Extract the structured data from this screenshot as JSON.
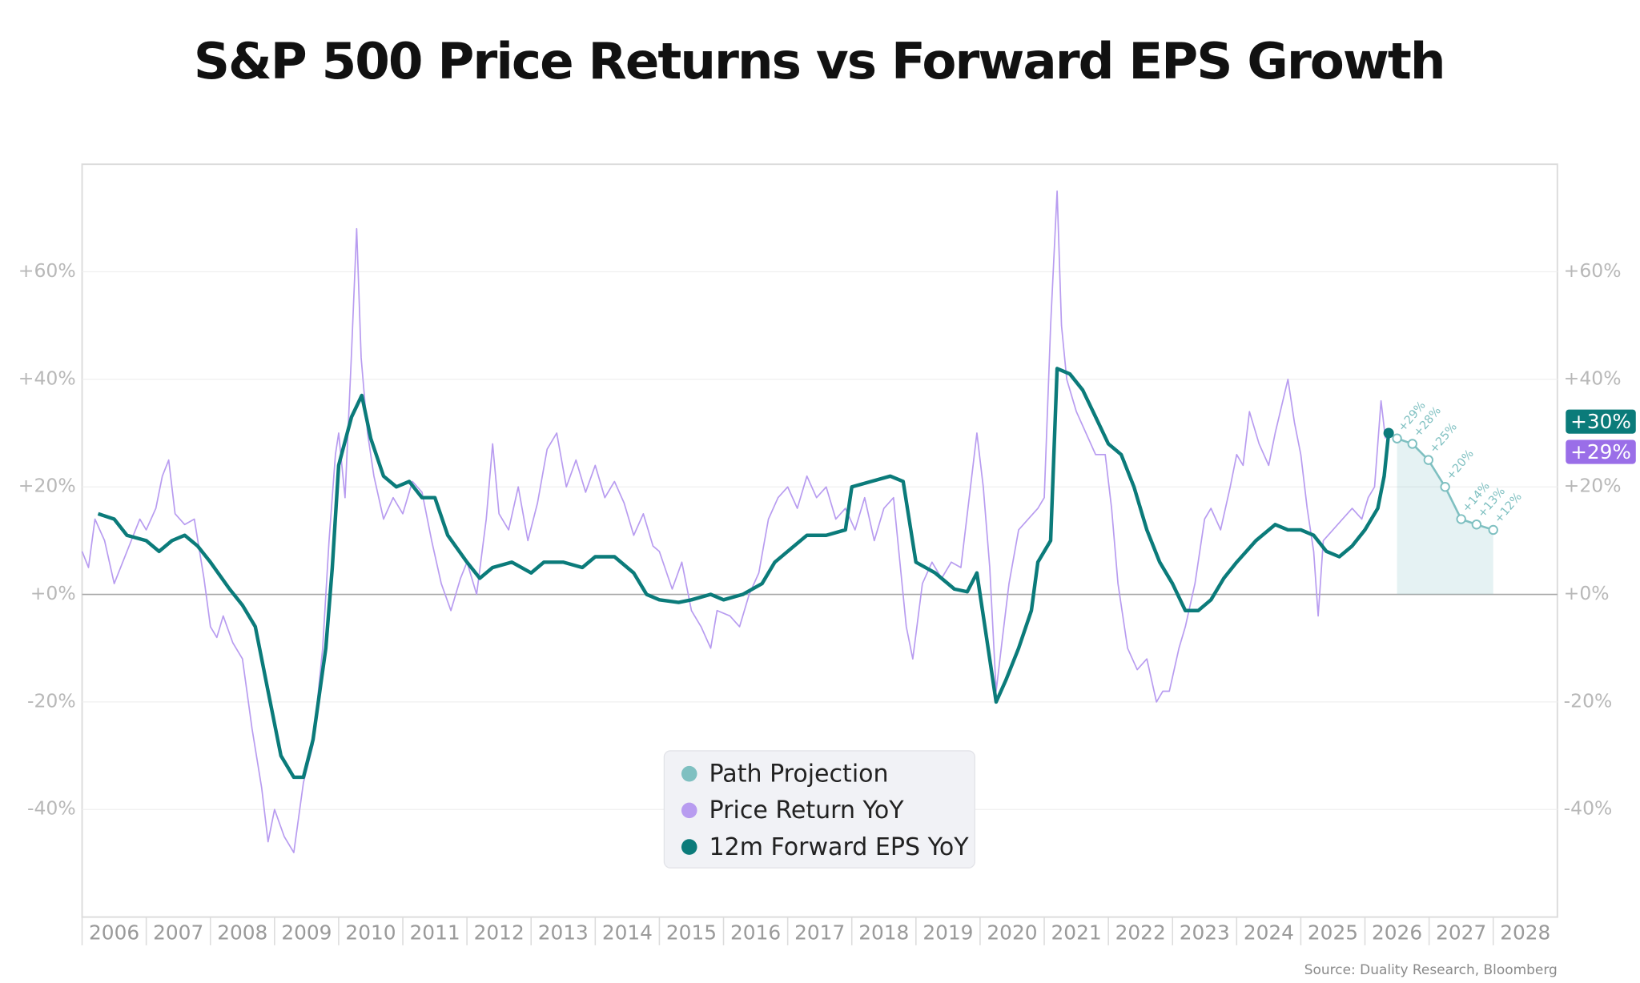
{
  "chart_data": {
    "type": "line",
    "title": "S&P 500 Price Returns vs Forward EPS Growth",
    "source": "Source: Duality Research, Bloomberg",
    "xlim": [
      2006,
      2029
    ],
    "xticks": [
      2006,
      2007,
      2008,
      2009,
      2010,
      2011,
      2012,
      2013,
      2014,
      2015,
      2016,
      2017,
      2018,
      2019,
      2020,
      2021,
      2022,
      2023,
      2024,
      2025,
      2026,
      2027,
      2028
    ],
    "ylim": [
      -60,
      80
    ],
    "yticks": [
      {
        "value": -40,
        "label": "-40%"
      },
      {
        "value": -20,
        "label": "-20%"
      },
      {
        "value": 0,
        "label": "+0%"
      },
      {
        "value": 20,
        "label": "+20%"
      },
      {
        "value": 40,
        "label": "+40%"
      },
      {
        "value": 60,
        "label": "+60%"
      }
    ],
    "grid": true,
    "legend": "bottom-center",
    "series": [
      {
        "name": "Path Projection",
        "color": "#7fc0c1",
        "area": true,
        "markers": true,
        "x": [
          2026.5,
          2026.74,
          2026.99,
          2027.25,
          2027.5,
          2027.74,
          2028.0
        ],
        "values": [
          29,
          28,
          25,
          20,
          14,
          13,
          12
        ],
        "value_labels": [
          "+29%",
          "+28%",
          "+25%",
          "+20%",
          "+14%",
          "+13%",
          "+12%"
        ]
      },
      {
        "name": "Price Return YoY",
        "color": "#b89cf0",
        "width": 1.3,
        "end_label": "+29%",
        "x": [
          2006.0,
          2006.1,
          2006.2,
          2006.35,
          2006.5,
          2006.7,
          2006.9,
          2007.0,
          2007.15,
          2007.25,
          2007.35,
          2007.45,
          2007.6,
          2007.75,
          2007.9,
          2008.0,
          2008.1,
          2008.2,
          2008.35,
          2008.5,
          2008.65,
          2008.8,
          2008.9,
          2009.0,
          2009.15,
          2009.3,
          2009.45,
          2009.6,
          2009.75,
          2009.85,
          2009.95,
          2010.0,
          2010.1,
          2010.2,
          2010.28,
          2010.35,
          2010.45,
          2010.55,
          2010.7,
          2010.85,
          2011.0,
          2011.15,
          2011.3,
          2011.45,
          2011.6,
          2011.75,
          2011.9,
          2012.0,
          2012.15,
          2012.3,
          2012.4,
          2012.5,
          2012.65,
          2012.8,
          2012.95,
          2013.1,
          2013.25,
          2013.4,
          2013.55,
          2013.7,
          2013.85,
          2014.0,
          2014.15,
          2014.3,
          2014.45,
          2014.6,
          2014.75,
          2014.9,
          2015.0,
          2015.2,
          2015.35,
          2015.5,
          2015.65,
          2015.8,
          2015.9,
          2016.1,
          2016.25,
          2016.4,
          2016.55,
          2016.7,
          2016.85,
          2017.0,
          2017.15,
          2017.3,
          2017.45,
          2017.6,
          2017.75,
          2017.9,
          2018.05,
          2018.2,
          2018.35,
          2018.5,
          2018.65,
          2018.75,
          2018.85,
          2018.95,
          2019.1,
          2019.25,
          2019.4,
          2019.55,
          2019.7,
          2019.85,
          2019.95,
          2020.05,
          2020.15,
          2020.25,
          2020.35,
          2020.45,
          2020.6,
          2020.75,
          2020.9,
          2021.0,
          2021.1,
          2021.2,
          2021.27,
          2021.35,
          2021.5,
          2021.65,
          2021.8,
          2021.95,
          2022.05,
          2022.15,
          2022.3,
          2022.45,
          2022.6,
          2022.75,
          2022.85,
          2022.95,
          2023.1,
          2023.2,
          2023.35,
          2023.5,
          2023.6,
          2023.75,
          2023.9,
          2024.0,
          2024.1,
          2024.2,
          2024.35,
          2024.5,
          2024.6,
          2024.7,
          2024.8,
          2024.9,
          2025.0,
          2025.1,
          2025.2,
          2025.27,
          2025.35,
          2025.5,
          2025.65,
          2025.8,
          2025.95,
          2026.05,
          2026.15,
          2026.25,
          2026.32
        ],
        "values": [
          8,
          5,
          14,
          10,
          2,
          8,
          14,
          12,
          16,
          22,
          25,
          15,
          13,
          14,
          3,
          -6,
          -8,
          -4,
          -9,
          -12,
          -25,
          -36,
          -46,
          -40,
          -45,
          -48,
          -35,
          -28,
          -10,
          10,
          26,
          30,
          18,
          45,
          68,
          44,
          30,
          22,
          14,
          18,
          15,
          21,
          19,
          10,
          2,
          -3,
          3,
          6,
          0,
          14,
          28,
          15,
          12,
          20,
          10,
          17,
          27,
          30,
          20,
          25,
          19,
          24,
          18,
          21,
          17,
          11,
          15,
          9,
          8,
          1,
          6,
          -3,
          -6,
          -10,
          -3,
          -4,
          -6,
          0,
          4,
          14,
          18,
          20,
          16,
          22,
          18,
          20,
          14,
          16,
          12,
          18,
          10,
          16,
          18,
          6,
          -6,
          -12,
          2,
          6,
          3,
          6,
          5,
          20,
          30,
          20,
          5,
          -18,
          -8,
          2,
          12,
          14,
          16,
          18,
          50,
          75,
          50,
          40,
          34,
          30,
          26,
          26,
          16,
          2,
          -10,
          -14,
          -12,
          -20,
          -18,
          -18,
          -10,
          -6,
          2,
          14,
          16,
          12,
          20,
          26,
          24,
          34,
          28,
          24,
          30,
          35,
          40,
          32,
          26,
          16,
          8,
          -4,
          10,
          12,
          14,
          16,
          14,
          18,
          20,
          36,
          29
        ]
      },
      {
        "name": "12m Forward EPS YoY",
        "color": "#0b7b7a",
        "width": 3.4,
        "end_label": "+30%",
        "x": [
          2006.25,
          2006.5,
          2006.7,
          2007.0,
          2007.2,
          2007.4,
          2007.6,
          2007.8,
          2008.0,
          2008.3,
          2008.5,
          2008.7,
          2008.9,
          2009.1,
          2009.3,
          2009.45,
          2009.6,
          2009.8,
          2009.9,
          2010.0,
          2010.2,
          2010.36,
          2010.5,
          2010.7,
          2010.9,
          2011.1,
          2011.3,
          2011.5,
          2011.7,
          2012.0,
          2012.2,
          2012.4,
          2012.7,
          2013.0,
          2013.2,
          2013.5,
          2013.8,
          2014.0,
          2014.3,
          2014.6,
          2014.8,
          2015.0,
          2015.3,
          2015.5,
          2015.8,
          2016.0,
          2016.3,
          2016.6,
          2016.8,
          2017.0,
          2017.3,
          2017.6,
          2017.9,
          2018.0,
          2018.3,
          2018.6,
          2018.8,
          2019.0,
          2019.3,
          2019.6,
          2019.8,
          2019.95,
          2020.1,
          2020.25,
          2020.4,
          2020.6,
          2020.8,
          2020.9,
          2021.1,
          2021.2,
          2021.4,
          2021.6,
          2021.8,
          2022.0,
          2022.2,
          2022.4,
          2022.6,
          2022.8,
          2023.0,
          2023.2,
          2023.4,
          2023.6,
          2023.8,
          2024.0,
          2024.3,
          2024.6,
          2024.8,
          2025.0,
          2025.2,
          2025.4,
          2025.6,
          2025.8,
          2026.0,
          2026.2,
          2026.3,
          2026.37
        ],
        "values": [
          15,
          14,
          11,
          10,
          8,
          10,
          11,
          9,
          6,
          1,
          -2,
          -6,
          -18,
          -30,
          -34,
          -34,
          -27,
          -10,
          5,
          24,
          33,
          37,
          29,
          22,
          20,
          21,
          18,
          18,
          11,
          6,
          3,
          5,
          6,
          4,
          6,
          6,
          5,
          7,
          7,
          4,
          0,
          -1,
          -1.5,
          -1,
          0,
          -1,
          0,
          2,
          6,
          8,
          11,
          11,
          12,
          20,
          21,
          22,
          21,
          6,
          4,
          1,
          0.5,
          4,
          -8,
          -20,
          -16,
          -10,
          -3,
          6,
          10,
          42,
          41,
          38,
          33,
          28,
          26,
          20,
          12,
          6,
          2,
          -3,
          -3,
          -1,
          3,
          6,
          10,
          13,
          12,
          12,
          11,
          8,
          7,
          9,
          12,
          16,
          22,
          30
        ]
      }
    ]
  }
}
